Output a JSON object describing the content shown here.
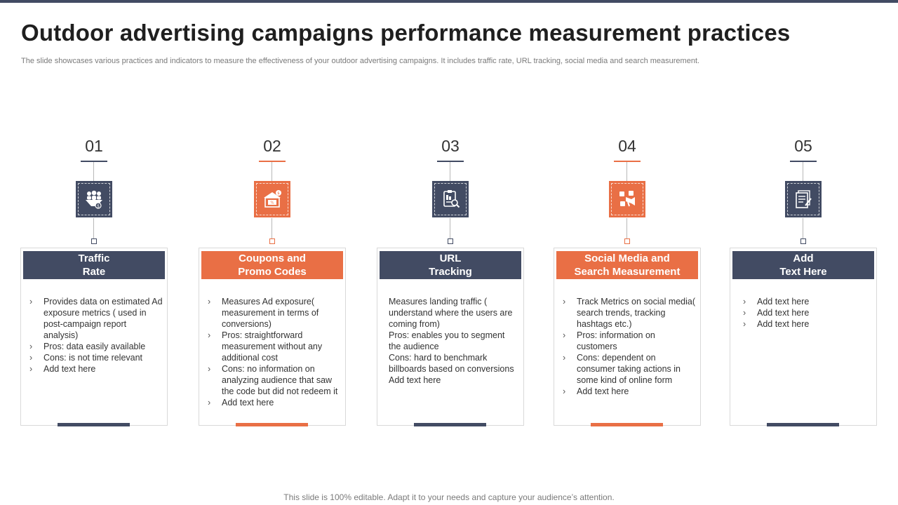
{
  "title": "Outdoor advertising campaigns performance measurement practices",
  "subtitle": "The slide showcases various practices and  indicators to measure the effectiveness of your outdoor advertising campaigns. It includes traffic rate, URL tracking, social media and search measurement.",
  "colors": {
    "navy": "#424b63",
    "orange": "#e96f45"
  },
  "columns": [
    {
      "number": "01",
      "icon": "traffic-people-icon",
      "heading_line1": "Traffic",
      "heading_line2": "Rate",
      "bullets": [
        "Provides data on estimated Ad exposure metrics ( used in post-campaign report analysis)",
        "Pros: data easily available",
        "Cons: is not time relevant",
        "Add text here"
      ]
    },
    {
      "number": "02",
      "icon": "coupon-shop-icon",
      "heading_line1": "Coupons and",
      "heading_line2": "Promo Codes",
      "bullets": [
        "Measures Ad exposure( measurement in terms of conversions)",
        "Pros:  straightforward measurement without any additional cost",
        "Cons: no information on analyzing audience that saw the code but did not redeem it",
        "Add text here"
      ]
    },
    {
      "number": "03",
      "icon": "clipboard-search-icon",
      "heading_line1": "URL",
      "heading_line2": "Tracking",
      "lines": [
        "Measures  landing traffic ( understand where the users are coming from)",
        "Pros: enables you to segment the audience",
        "Cons: hard to benchmark billboards based on conversions",
        "Add text here"
      ]
    },
    {
      "number": "04",
      "icon": "social-media-megaphone-icon",
      "heading_line1": "Social Media and",
      "heading_line2": "Search Measurement",
      "bullets": [
        "Track Metrics on social media( search trends, tracking hashtags etc.)",
        "Pros: information on customers",
        "Cons: dependent on consumer taking actions in some kind of online form",
        "Add text here"
      ]
    },
    {
      "number": "05",
      "icon": "document-edit-icon",
      "heading_line1": "Add",
      "heading_line2": "Text Here",
      "bullets": [
        "Add text here",
        "Add text here",
        "Add text here"
      ]
    }
  ],
  "footer": "This slide is 100% editable. Adapt it to your needs and capture your audience’s attention."
}
